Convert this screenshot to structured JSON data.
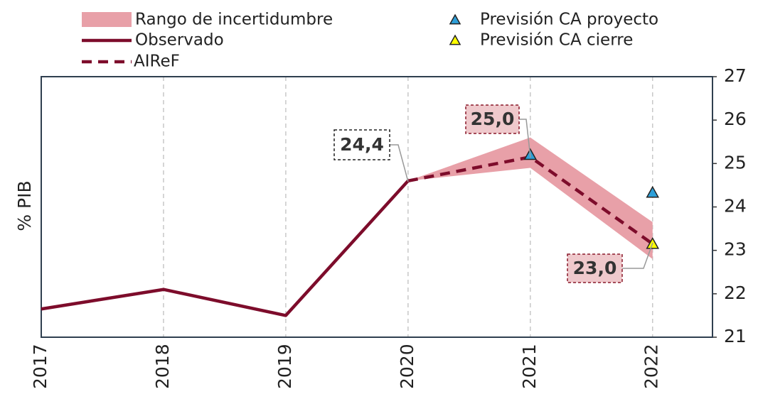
{
  "chart_data": {
    "type": "line",
    "y_label": "% PIB",
    "x": [
      2017,
      2018,
      2019,
      2020,
      2021,
      2022
    ],
    "xlim": [
      2017,
      2022.49
    ],
    "xticks": [
      2017,
      2018,
      2019,
      2020,
      2021,
      2022
    ],
    "ylim": [
      21,
      27
    ],
    "yticks": [
      21,
      22,
      23,
      24,
      25,
      26,
      27
    ],
    "y_axis_side": "right",
    "grid": "x",
    "band": {
      "name": "Rango de incertidumbre",
      "color": "#e8a0a8",
      "lower": [
        null,
        null,
        null,
        24.6,
        24.9,
        22.8
      ],
      "upper": [
        null,
        null,
        null,
        24.6,
        25.6,
        23.65
      ]
    },
    "series": [
      {
        "name": "Observado",
        "type": "line",
        "style": "solid",
        "color": "#7d0c2b",
        "values": [
          21.65,
          22.1,
          21.5,
          24.6,
          null,
          null
        ]
      },
      {
        "name": "AIReF",
        "type": "line",
        "style": "dashed",
        "color": "#7d0c2b",
        "values": [
          null,
          null,
          null,
          24.6,
          25.15,
          23.15
        ]
      },
      {
        "name": "Previsión CA proyecto",
        "type": "scatter",
        "color": "#2e9fd8",
        "values": [
          null,
          null,
          null,
          null,
          25.2,
          24.33
        ]
      },
      {
        "name": "Previsión CA cierre",
        "type": "scatter",
        "color": "#ffff00",
        "values": [
          null,
          null,
          null,
          null,
          null,
          23.15
        ]
      }
    ],
    "annotations": [
      {
        "text": "24,4",
        "style": "plain"
      },
      {
        "text": "25,0",
        "style": "highlight"
      },
      {
        "text": "23,0",
        "style": "highlight"
      }
    ]
  }
}
